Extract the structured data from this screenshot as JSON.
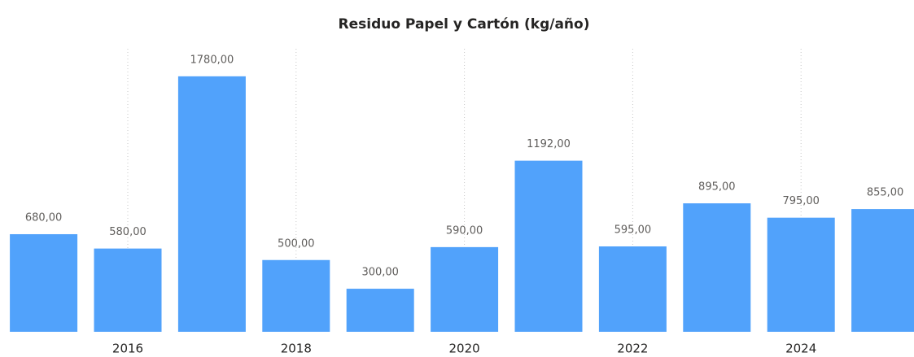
{
  "chart_data": {
    "type": "bar",
    "title": "Residuo Papel y Cartón (kg/año)",
    "categories": [
      null,
      "2016",
      null,
      "2018",
      null,
      "2020",
      null,
      "2022",
      null,
      "2024",
      null
    ],
    "values": [
      680,
      580,
      1780,
      500,
      300,
      590,
      1192,
      595,
      895,
      795,
      855
    ],
    "value_labels": [
      "680,00",
      "580,00",
      "1780,00",
      "500,00",
      "300,00",
      "590,00",
      "1192,00",
      "595,00",
      "895,00",
      "795,00",
      "855,00"
    ],
    "color": "#51a2fb",
    "ylim": [
      0,
      2000
    ],
    "grid": true
  }
}
